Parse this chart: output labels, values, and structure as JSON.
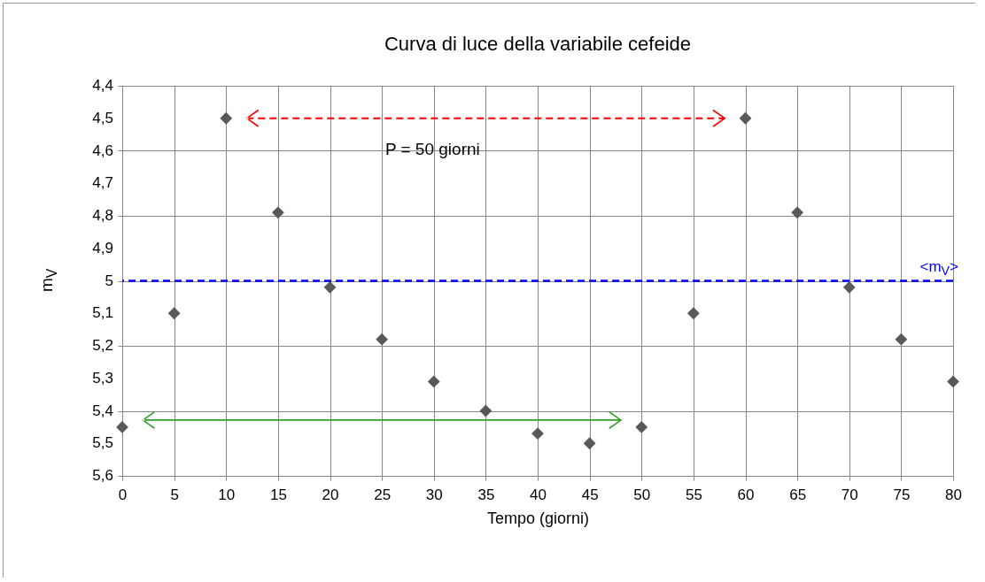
{
  "chart_data": {
    "type": "scatter",
    "title": "Curva di luce della variabile cefeide",
    "xlabel": "Tempo (giorni)",
    "ylabel": "m$_{V}$",
    "x": [
      0,
      5,
      10,
      15,
      20,
      25,
      30,
      35,
      40,
      45,
      50,
      55,
      60,
      65,
      70,
      75,
      80
    ],
    "series": [
      {
        "color": "#595959",
        "values": [
          5.45,
          5.1,
          4.5,
          4.79,
          5.02,
          5.18,
          5.31,
          5.4,
          5.47,
          5.5,
          5.45,
          5.1,
          4.5,
          4.79,
          5.02,
          5.18,
          5.31
        ]
      }
    ],
    "marker": "diamond",
    "xlim": [
      0,
      80
    ],
    "xticks": [
      0,
      5,
      10,
      15,
      20,
      25,
      30,
      35,
      40,
      45,
      50,
      55,
      60,
      65,
      70,
      75,
      80
    ],
    "ylim": [
      5.6,
      4.4
    ],
    "yticks": [
      {
        "value": 4.4,
        "label": "4,4"
      },
      {
        "value": 4.5,
        "label": "4,5"
      },
      {
        "value": 4.6,
        "label": "4,6"
      },
      {
        "value": 4.7,
        "label": "4,7"
      },
      {
        "value": 4.8,
        "label": "4,8"
      },
      {
        "value": 4.9,
        "label": "4,9"
      },
      5,
      {
        "value": 5.1,
        "label": "5,1"
      },
      {
        "value": 5.2,
        "label": "5,2"
      },
      {
        "value": 5.3,
        "label": "5,3"
      },
      {
        "value": 5.4,
        "label": "5,4"
      },
      {
        "value": 5.5,
        "label": "5,5"
      },
      {
        "value": 5.6,
        "label": "5,6"
      }
    ],
    "grid": true,
    "ref_lines": [
      {
        "axis": "y",
        "value": 5,
        "label": "<m$_{V}$>",
        "color": "#0000ff",
        "line_style": "dashed"
      }
    ],
    "annotations": [
      "P = 50 giorni"
    ]
  }
}
